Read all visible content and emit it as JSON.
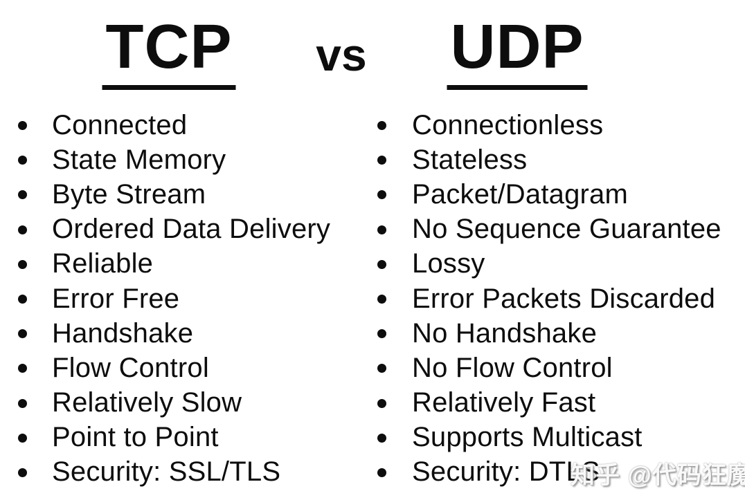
{
  "title": {
    "left": "TCP",
    "middle": "vs",
    "right": "UDP"
  },
  "columns": [
    {
      "name": "tcp",
      "items": [
        "Connected",
        "State Memory",
        "Byte Stream",
        "Ordered Data Delivery",
        "Reliable",
        "Error Free",
        "Handshake",
        "Flow Control",
        "Relatively Slow",
        "Point to Point",
        "Security: SSL/TLS"
      ]
    },
    {
      "name": "udp",
      "items": [
        "Connectionless",
        "Stateless",
        "Packet/Datagram",
        "No Sequence Guarantee",
        "Lossy",
        "Error Packets Discarded",
        "No Handshake",
        "No Flow Control",
        "Relatively Fast",
        "Supports Multicast",
        "Security: DTLS"
      ]
    }
  ],
  "watermark": {
    "text": "知乎 @代码狂魔"
  },
  "colors": {
    "text": "#0d0d0d",
    "background": "#ffffff",
    "underline": "#0d0d0d",
    "watermark_shadow": "#7d7d7d"
  }
}
